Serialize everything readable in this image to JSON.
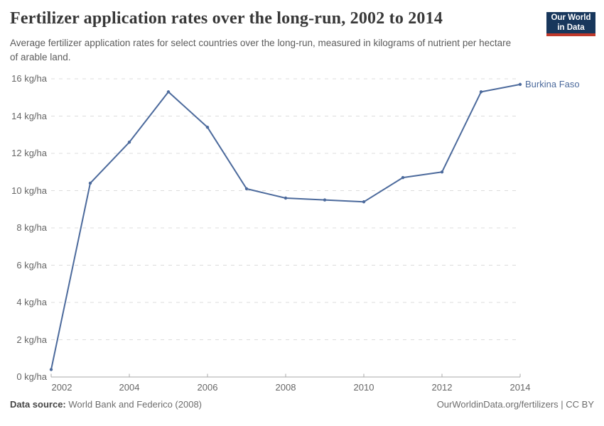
{
  "header": {
    "title": "Fertilizer application rates over the long-run, 2002 to 2014",
    "subtitle": "Average fertilizer application rates for select countries over the long-run, measured in kilograms of nutrient per hectare of arable land.",
    "logo": {
      "line1": "Our World",
      "line2": "in Data",
      "bg_color": "#18375c",
      "accent_color": "#c0392b"
    }
  },
  "chart_data": {
    "type": "line",
    "title": "Fertilizer application rates over the long-run, 2002 to 2014",
    "x": [
      2002,
      2003,
      2004,
      2005,
      2006,
      2007,
      2008,
      2009,
      2010,
      2011,
      2012,
      2013,
      2014
    ],
    "series": [
      {
        "name": "Burkina Faso",
        "color": "#4c6a9c",
        "values": [
          0.4,
          10.4,
          12.6,
          15.3,
          13.4,
          10.1,
          9.6,
          9.5,
          9.4,
          10.7,
          11.0,
          15.3,
          15.7
        ]
      }
    ],
    "unit": "kg/ha",
    "xlim": [
      2002,
      2014
    ],
    "ylim": [
      0,
      16
    ],
    "y_ticks": [
      0,
      2,
      4,
      6,
      8,
      10,
      12,
      14,
      16
    ],
    "y_tick_labels": [
      "0 kg/ha",
      "2 kg/ha",
      "4 kg/ha",
      "6 kg/ha",
      "8 kg/ha",
      "10 kg/ha",
      "12 kg/ha",
      "14 kg/ha",
      "16 kg/ha"
    ],
    "x_ticks": [
      2002,
      2004,
      2006,
      2008,
      2010,
      2012,
      2014
    ],
    "x_tick_labels": [
      "2002",
      "2004",
      "2006",
      "2008",
      "2010",
      "2012",
      "2014"
    ],
    "grid": "horizontal-dashed",
    "legend_position": "end-of-line-label",
    "end_label": "Burkina Faso",
    "grid_color": "#dcdcdc",
    "axis_color": "#a8a8a8"
  },
  "footer": {
    "source_label": "Data source:",
    "source_value": "World Bank and Federico (2008)",
    "credit": "OurWorldinData.org/fertilizers | CC BY"
  }
}
